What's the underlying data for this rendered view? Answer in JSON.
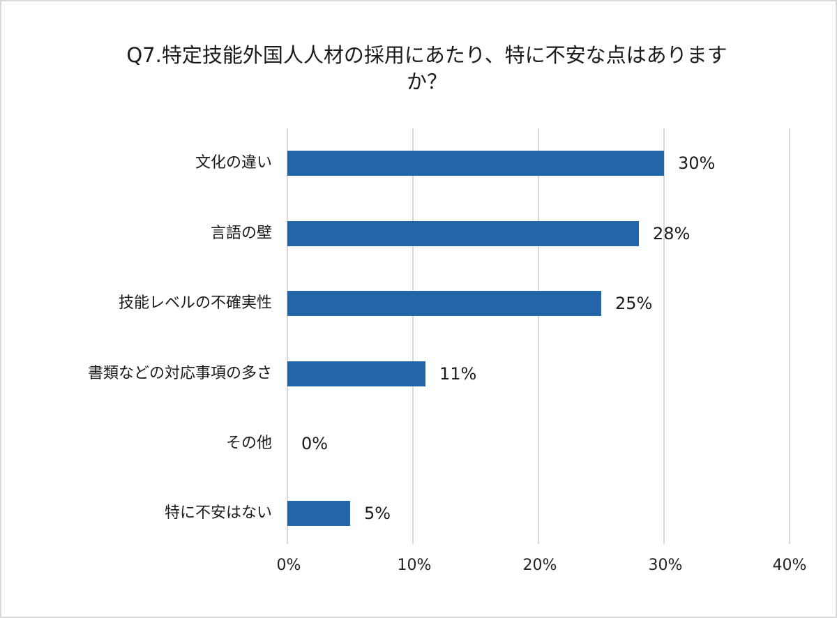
{
  "chart_data": {
    "type": "bar",
    "orientation": "horizontal",
    "title": "Q7.特定技能外国人人材の採用にあたり、特に不安な点はありますか？",
    "title_lines": [
      "Q7.特定技能外国人人材の採用にあたり、特に不安な点はあります",
      "か？"
    ],
    "categories": [
      "文化の違い",
      "言語の壁",
      "技能レベルの不確実性",
      "書類などの対応事項の多さ",
      "その他",
      "特に不安はない"
    ],
    "values": [
      30,
      28,
      25,
      11,
      0,
      5
    ],
    "value_labels": [
      "30%",
      "28%",
      "25%",
      "11%",
      "0%",
      "5%"
    ],
    "xlabel": "",
    "ylabel": "",
    "xlim": [
      0,
      40
    ],
    "x_ticks": [
      "0%",
      "10%",
      "20%",
      "30%",
      "40%"
    ],
    "grid": true,
    "legend": "none",
    "bar_color": "#2366a8",
    "gridline_color": "#d9d9d9"
  }
}
